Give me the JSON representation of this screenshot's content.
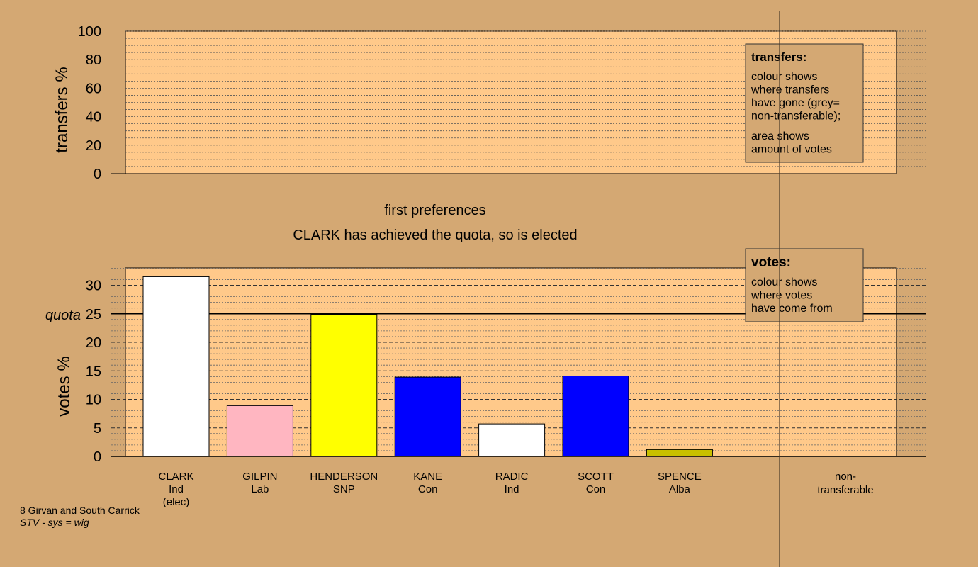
{
  "chart_data": [
    {
      "type": "bar",
      "name": "transfers",
      "ylabel": "transfers %",
      "ylim": [
        0,
        100
      ],
      "yticks": [
        0,
        20,
        40,
        60,
        80,
        100
      ],
      "categories": [],
      "values": [],
      "legend": {
        "placement": "top-right",
        "title": "transfers:",
        "lines": [
          "colour shows",
          "where transfers",
          "have gone (grey=",
          "non-transferable);"
        ],
        "lines2": [
          "area shows",
          "amount of votes"
        ]
      }
    },
    {
      "type": "bar",
      "name": "votes",
      "title": "first preferences",
      "subtitle": "CLARK has achieved the quota, so is elected",
      "ylabel": "votes %",
      "ylim": [
        0,
        30
      ],
      "yticks": [
        0,
        5,
        10,
        15,
        20,
        25,
        30
      ],
      "quota": 25,
      "quota_label": "quota",
      "categories": [
        {
          "name": "CLARK",
          "party": "Ind",
          "note": "(elec)"
        },
        {
          "name": "GILPIN",
          "party": "Lab",
          "note": ""
        },
        {
          "name": "HENDERSON",
          "party": "SNP",
          "note": ""
        },
        {
          "name": "KANE",
          "party": "Con",
          "note": ""
        },
        {
          "name": "RADIC",
          "party": "Ind",
          "note": ""
        },
        {
          "name": "SCOTT",
          "party": "Con",
          "note": ""
        },
        {
          "name": "SPENCE",
          "party": "Alba",
          "note": ""
        }
      ],
      "values": [
        31.5,
        8.9,
        24.9,
        13.9,
        5.7,
        14.1,
        1.2
      ],
      "colors": [
        "#ffffff",
        "#ffb6c1",
        "#ffff00",
        "#0000ff",
        "#ffffff",
        "#0000ff",
        "#c8c000"
      ],
      "nontransferable_label": [
        "non-",
        "transferable"
      ],
      "legend": {
        "placement": "top-right",
        "title": "votes:",
        "lines": [
          "colour shows",
          "where votes",
          "have come from"
        ]
      }
    }
  ],
  "footer": {
    "ward": "8 Girvan and South Carrick",
    "system": "STV - sys = wig"
  },
  "colors": {
    "background": "#d4a873",
    "plot_fill": "#ffc98a",
    "legend_fill": "#d4a873"
  }
}
